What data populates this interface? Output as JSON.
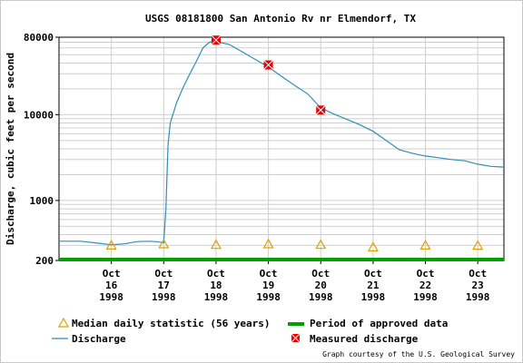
{
  "chart_data": {
    "type": "line",
    "title": "USGS 08181800 San Antonio Rv nr Elmendorf, TX",
    "ylabel": "Discharge, cubic feet per second",
    "xlabel": "",
    "y_scale": "log",
    "ylim": [
      200,
      80000
    ],
    "y_ticks": [
      {
        "value": 200,
        "label": "200"
      },
      {
        "value": 1000,
        "label": "1000"
      },
      {
        "value": 10000,
        "label": "10000"
      },
      {
        "value": 80000,
        "label": "80000"
      }
    ],
    "x_domain": [
      "1998-10-15T12:00",
      "1998-10-24T00:00"
    ],
    "x_ticks": [
      {
        "date": "1998-10-16T12:00",
        "lines": [
          "Oct",
          "16",
          "1998"
        ]
      },
      {
        "date": "1998-10-17T12:00",
        "lines": [
          "Oct",
          "17",
          "1998"
        ]
      },
      {
        "date": "1998-10-18T12:00",
        "lines": [
          "Oct",
          "18",
          "1998"
        ]
      },
      {
        "date": "1998-10-19T12:00",
        "lines": [
          "Oct",
          "19",
          "1998"
        ]
      },
      {
        "date": "1998-10-20T12:00",
        "lines": [
          "Oct",
          "20",
          "1998"
        ]
      },
      {
        "date": "1998-10-21T12:00",
        "lines": [
          "Oct",
          "21",
          "1998"
        ]
      },
      {
        "date": "1998-10-22T12:00",
        "lines": [
          "Oct",
          "22",
          "1998"
        ]
      },
      {
        "date": "1998-10-23T12:00",
        "lines": [
          "Oct",
          "23",
          "1998"
        ]
      }
    ],
    "grid": true,
    "series": [
      {
        "name": "Discharge",
        "color": "#2f8fb5",
        "points": [
          [
            "1998-10-15T12:00",
            335
          ],
          [
            "1998-10-15T22:00",
            335
          ],
          [
            "1998-10-16T06:00",
            318
          ],
          [
            "1998-10-16T12:00",
            305
          ],
          [
            "1998-10-16T18:00",
            312
          ],
          [
            "1998-10-17T00:00",
            332
          ],
          [
            "1998-10-17T06:00",
            335
          ],
          [
            "1998-10-17T10:00",
            328
          ],
          [
            "1998-10-17T12:00",
            320
          ],
          [
            "1998-10-17T13:00",
            800
          ],
          [
            "1998-10-17T14:00",
            4500
          ],
          [
            "1998-10-17T15:00",
            8000
          ],
          [
            "1998-10-17T18:00",
            14000
          ],
          [
            "1998-10-17T21:00",
            21000
          ],
          [
            "1998-10-18T00:00",
            30000
          ],
          [
            "1998-10-18T03:00",
            42000
          ],
          [
            "1998-10-18T06:00",
            60000
          ],
          [
            "1998-10-18T09:00",
            70000
          ],
          [
            "1998-10-18T12:00",
            71000
          ],
          [
            "1998-10-18T18:00",
            66000
          ],
          [
            "1998-10-19T00:00",
            54000
          ],
          [
            "1998-10-19T06:00",
            44000
          ],
          [
            "1998-10-19T12:00",
            36000
          ],
          [
            "1998-10-19T18:00",
            28000
          ],
          [
            "1998-10-20T00:00",
            22000
          ],
          [
            "1998-10-20T06:00",
            17500
          ],
          [
            "1998-10-20T12:00",
            12000
          ],
          [
            "1998-10-20T18:00",
            10200
          ],
          [
            "1998-10-21T00:00",
            8800
          ],
          [
            "1998-10-21T06:00",
            7600
          ],
          [
            "1998-10-21T12:00",
            6400
          ],
          [
            "1998-10-21T18:00",
            5000
          ],
          [
            "1998-10-22T00:00",
            3900
          ],
          [
            "1998-10-22T06:00",
            3550
          ],
          [
            "1998-10-22T12:00",
            3300
          ],
          [
            "1998-10-22T18:00",
            3150
          ],
          [
            "1998-10-23T00:00",
            3000
          ],
          [
            "1998-10-23T06:00",
            2900
          ],
          [
            "1998-10-23T12:00",
            2650
          ],
          [
            "1998-10-23T18:00",
            2500
          ],
          [
            "1998-10-24T00:00",
            2450
          ]
        ]
      }
    ],
    "median_daily": {
      "name": "Median daily statistic (56 years)",
      "color": "#e0a000",
      "points": [
        [
          "1998-10-16T12:00",
          300
        ],
        [
          "1998-10-17T12:00",
          310
        ],
        [
          "1998-10-18T12:00",
          305
        ],
        [
          "1998-10-19T12:00",
          310
        ],
        [
          "1998-10-20T12:00",
          305
        ],
        [
          "1998-10-21T12:00",
          285
        ],
        [
          "1998-10-22T12:00",
          300
        ],
        [
          "1998-10-23T12:00",
          298
        ]
      ]
    },
    "measured_discharge": {
      "name": "Measured discharge",
      "color": "#ee0000",
      "points": [
        [
          "1998-10-18T12:00",
          74000
        ],
        [
          "1998-10-19T12:00",
          38000
        ],
        [
          "1998-10-20T12:00",
          11300
        ]
      ]
    },
    "approved_period": {
      "name": "Period of approved data",
      "color": "#00a000",
      "range": [
        "1998-10-15T12:00",
        "1998-10-24T00:00"
      ]
    },
    "legend_position": "bottom",
    "credit": "Graph courtesy of the U.S. Geological Survey"
  }
}
